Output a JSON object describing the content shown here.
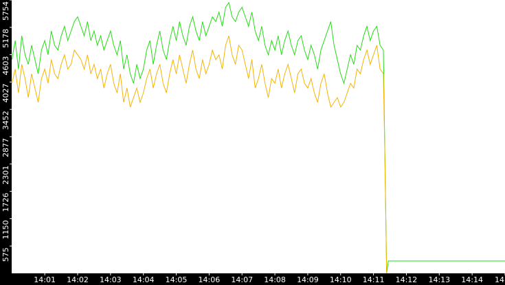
{
  "chart_data": {
    "type": "line",
    "x": [
      0.0,
      0.1,
      0.2,
      0.3,
      0.4,
      0.5,
      0.6,
      0.7,
      0.8,
      0.9,
      1.0,
      1.1,
      1.2,
      1.3,
      1.4,
      1.5,
      1.6,
      1.7,
      1.8,
      1.9,
      2.0,
      2.1,
      2.2,
      2.3,
      2.4,
      2.5,
      2.6,
      2.7,
      2.8,
      2.9,
      3.0,
      3.1,
      3.2,
      3.3,
      3.4,
      3.5,
      3.6,
      3.7,
      3.8,
      3.9,
      4.0,
      4.1,
      4.2,
      4.3,
      4.4,
      4.5,
      4.6,
      4.7,
      4.8,
      4.9,
      5.0,
      5.1,
      5.2,
      5.3,
      5.4,
      5.5,
      5.6,
      5.7,
      5.8,
      5.9,
      6.0,
      6.1,
      6.2,
      6.3,
      6.4,
      6.5,
      6.6,
      6.7,
      6.8,
      6.9,
      7.0,
      7.1,
      7.2,
      7.3,
      7.4,
      7.5,
      7.6,
      7.7,
      7.8,
      7.9,
      8.0,
      8.1,
      8.2,
      8.3,
      8.4,
      8.5,
      8.6,
      8.7,
      8.8,
      8.9,
      9.0,
      9.1,
      9.2,
      9.3,
      9.4,
      9.5,
      9.6,
      9.7,
      9.8,
      9.9,
      10.0,
      10.1,
      10.2,
      10.3,
      10.4,
      10.5,
      10.6,
      10.7,
      10.8,
      10.9,
      11.0,
      11.1,
      11.2,
      11.3,
      11.35,
      11.4,
      11.45,
      15.0
    ],
    "series": [
      {
        "color": "#22dd11",
        "values": [
          4500,
          4900,
          4300,
          5000,
          4600,
          4400,
          4800,
          4500,
          4200,
          4700,
          4900,
          4600,
          5100,
          4800,
          4700,
          5000,
          5200,
          4900,
          5100,
          5300,
          5400,
          5200,
          5000,
          5300,
          4900,
          5100,
          4800,
          5000,
          4700,
          4900,
          5100,
          4800,
          4600,
          4900,
          4300,
          4600,
          4200,
          4000,
          4400,
          4100,
          4300,
          4700,
          4900,
          4400,
          4800,
          5100,
          4700,
          4500,
          4900,
          5200,
          4900,
          5300,
          5000,
          4800,
          5200,
          5400,
          5100,
          4900,
          5300,
          5000,
          5200,
          5400,
          5300,
          5500,
          5200,
          5600,
          5700,
          5400,
          5300,
          5500,
          5600,
          5400,
          5200,
          5500,
          5100,
          4900,
          5200,
          4800,
          4600,
          4900,
          4700,
          5000,
          4600,
          4900,
          5100,
          4800,
          4600,
          4900,
          5000,
          4700,
          4500,
          4800,
          4600,
          4300,
          4700,
          4900,
          5100,
          5300,
          4800,
          4500,
          4200,
          4000,
          4300,
          4600,
          4400,
          4800,
          4700,
          5000,
          5200,
          4900,
          5100,
          5200,
          4800,
          4700,
          2300,
          0,
          260,
          260
        ]
      },
      {
        "color": "#f5b400",
        "values": [
          4000,
          4300,
          3800,
          4400,
          4100,
          3700,
          4200,
          3900,
          3600,
          4100,
          4300,
          4000,
          4500,
          4200,
          4100,
          4400,
          4600,
          4300,
          4400,
          4700,
          4600,
          4500,
          4300,
          4600,
          4200,
          4400,
          4100,
          4300,
          3900,
          4200,
          4400,
          4000,
          3800,
          4200,
          3600,
          3900,
          3500,
          3700,
          3900,
          3600,
          3800,
          4100,
          4300,
          3900,
          4200,
          4400,
          4000,
          3800,
          4200,
          4500,
          4200,
          4600,
          4300,
          4000,
          4400,
          4700,
          4300,
          4100,
          4500,
          4200,
          4400,
          4700,
          4500,
          4600,
          4300,
          4800,
          5000,
          4600,
          4400,
          4800,
          4700,
          4400,
          4100,
          4500,
          3900,
          4100,
          4400,
          4000,
          3700,
          4100,
          4000,
          4300,
          3900,
          4200,
          4400,
          4100,
          3800,
          4200,
          4300,
          4000,
          3900,
          4100,
          3800,
          3600,
          4000,
          4200,
          3800,
          3500,
          3600,
          3700,
          3500,
          3600,
          3800,
          4000,
          3900,
          4300,
          4200,
          4500,
          4700,
          4400,
          4600,
          4800,
          4300,
          4200,
          2300,
          0,
          null,
          null
        ]
      }
    ],
    "xlim": [
      0,
      15
    ],
    "xticks": [
      {
        "value": 1,
        "label": "14:01"
      },
      {
        "value": 2,
        "label": "14:02"
      },
      {
        "value": 3,
        "label": "14:03"
      },
      {
        "value": 4,
        "label": "14:04"
      },
      {
        "value": 5,
        "label": "14:05"
      },
      {
        "value": 6,
        "label": "14:06"
      },
      {
        "value": 7,
        "label": "14:07"
      },
      {
        "value": 8,
        "label": "14:08"
      },
      {
        "value": 9,
        "label": "14:09"
      },
      {
        "value": 10,
        "label": "14:10"
      },
      {
        "value": 11,
        "label": "14:11"
      },
      {
        "value": 12,
        "label": "14:12"
      },
      {
        "value": 13,
        "label": "14:13"
      },
      {
        "value": 14,
        "label": "14:14"
      },
      {
        "value": 15,
        "label": "14"
      }
    ],
    "ylim": [
      0,
      5754
    ],
    "yticks": [
      575,
      1150,
      1726,
      2301,
      2877,
      3452,
      4027,
      4603,
      5178,
      5754
    ]
  }
}
